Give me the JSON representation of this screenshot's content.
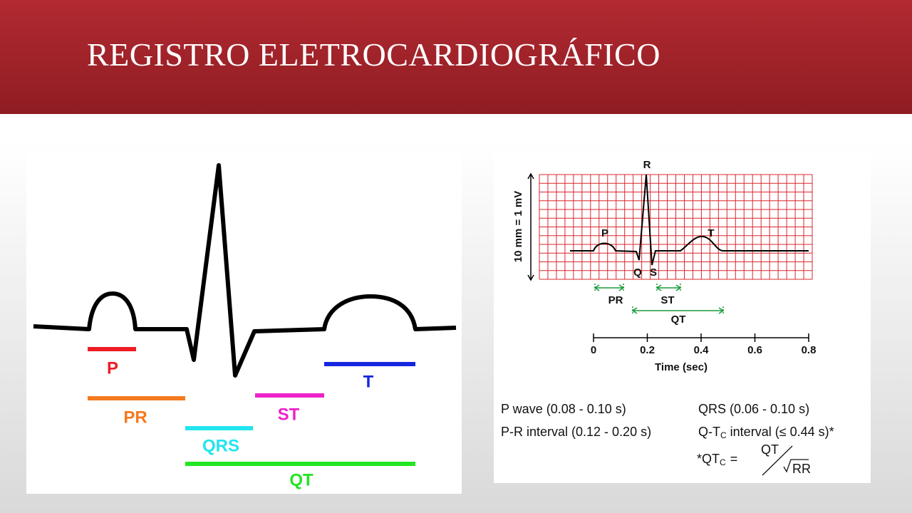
{
  "header": {
    "title": "REGISTRO ELETROCARDIOGRÁFICO"
  },
  "left_diagram": {
    "labels": {
      "p": "P",
      "pr": "PR",
      "qrs": "QRS",
      "st": "ST",
      "t": "T",
      "qt": "QT"
    }
  },
  "right_diagram": {
    "waves": {
      "r": "R",
      "p": "P",
      "t": "T",
      "q": "Q",
      "s": "S"
    },
    "intervals": {
      "pr": "PR",
      "st": "ST",
      "qt": "QT"
    },
    "y_label": "10 mm = 1 mV",
    "time_axis": {
      "ticks": [
        0,
        0.2,
        0.4,
        0.6,
        0.8
      ],
      "label": "Time (sec)"
    },
    "notes": {
      "p_wave": "P wave (0.08 - 0.10 s)",
      "qrs": "QRS (0.06 - 0.10 s)",
      "pr_interval": "P-R interval (0.12 - 0.20 s)",
      "qtc_interval": {
        "prefix": "Q-T",
        "sub": "C",
        "suffix": " interval (≤ 0.44 s)*"
      },
      "formula": {
        "lhs": "*QT",
        "sub": "C",
        "eq": "=",
        "num": "QT",
        "den": "RR"
      }
    }
  }
}
